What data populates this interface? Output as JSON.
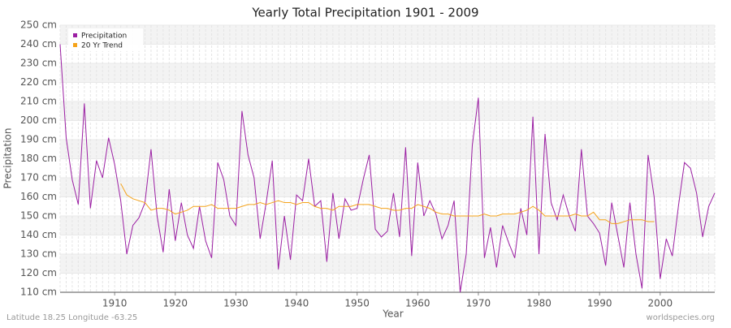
{
  "chart_data": {
    "type": "line",
    "title": "Yearly Total Precipitation 1901 - 2009",
    "x_label": "Year",
    "y_label": "Precipitation",
    "footer_left": "Latitude 18.25 Longitude -63.25",
    "footer_right": "worldspecies.org",
    "legend_position": "top-left",
    "grid": true,
    "x": [
      1901,
      1902,
      1903,
      1904,
      1905,
      1906,
      1907,
      1908,
      1909,
      1910,
      1911,
      1912,
      1913,
      1914,
      1915,
      1916,
      1917,
      1918,
      1919,
      1920,
      1921,
      1922,
      1923,
      1924,
      1925,
      1926,
      1927,
      1928,
      1929,
      1930,
      1931,
      1932,
      1933,
      1934,
      1935,
      1936,
      1937,
      1938,
      1939,
      1940,
      1941,
      1942,
      1943,
      1944,
      1945,
      1946,
      1947,
      1948,
      1949,
      1950,
      1951,
      1952,
      1953,
      1954,
      1955,
      1956,
      1957,
      1958,
      1959,
      1960,
      1961,
      1962,
      1963,
      1964,
      1965,
      1966,
      1967,
      1968,
      1969,
      1970,
      1971,
      1972,
      1973,
      1974,
      1975,
      1976,
      1977,
      1978,
      1979,
      1980,
      1981,
      1982,
      1983,
      1984,
      1985,
      1986,
      1987,
      1988,
      1989,
      1990,
      1991,
      1992,
      1993,
      1994,
      1995,
      1996,
      1997,
      1998,
      1999,
      2000,
      2001,
      2002,
      2003,
      2004,
      2005,
      2006,
      2007,
      2008,
      2009
    ],
    "series": [
      {
        "name": "Precipitation",
        "color": "#9b1fa3",
        "values": [
          240,
          191,
          169,
          156,
          209,
          154,
          179,
          170,
          191,
          177,
          158,
          130,
          145,
          149,
          157,
          185,
          150,
          131,
          164,
          137,
          157,
          140,
          133,
          155,
          137,
          128,
          178,
          169,
          150,
          145,
          205,
          182,
          170,
          138,
          157,
          179,
          122,
          150,
          127,
          161,
          158,
          180,
          155,
          158,
          126,
          162,
          138,
          159,
          153,
          154,
          169,
          182,
          143,
          139,
          142,
          162,
          139,
          186,
          129,
          178,
          150,
          158,
          151,
          138,
          145,
          158,
          110,
          130,
          187,
          212,
          128,
          144,
          123,
          145,
          136,
          128,
          154,
          140,
          202,
          130,
          193,
          157,
          148,
          161,
          150,
          142,
          185,
          150,
          146,
          141,
          124,
          157,
          140,
          123,
          157,
          130,
          112,
          182,
          160,
          117,
          138,
          129,
          155,
          178,
          175,
          162,
          139,
          155,
          162
        ]
      },
      {
        "name": "20 Yr Trend",
        "color": "#f5a31a",
        "values": [
          null,
          null,
          null,
          null,
          null,
          null,
          null,
          null,
          null,
          null,
          167,
          161,
          159,
          158,
          157,
          153,
          154,
          154,
          153,
          151,
          152,
          153,
          155,
          155,
          155,
          156,
          154,
          154,
          154,
          154,
          155,
          156,
          156,
          157,
          156,
          157,
          158,
          157,
          157,
          156,
          157,
          157,
          155,
          154,
          154,
          153,
          155,
          155,
          155,
          156,
          156,
          156,
          155,
          154,
          154,
          153,
          153,
          154,
          154,
          156,
          155,
          154,
          152,
          151,
          151,
          150,
          150,
          150,
          150,
          150,
          151,
          150,
          150,
          151,
          151,
          151,
          152,
          153,
          155,
          153,
          150,
          150,
          150,
          150,
          150,
          151,
          150,
          150,
          152,
          148,
          148,
          146,
          146,
          147,
          148,
          148,
          148,
          147,
          147,
          null,
          null,
          null,
          null,
          null,
          null,
          null,
          null,
          null,
          null
        ]
      }
    ],
    "xlim": [
      1901,
      2009
    ],
    "xticks": [
      1910,
      1920,
      1930,
      1940,
      1950,
      1960,
      1970,
      1980,
      1990,
      2000
    ],
    "ylim": [
      110,
      250
    ],
    "yticks": [
      {
        "value": 110,
        "label": "110 cm"
      },
      {
        "value": 120,
        "label": "120 cm"
      },
      {
        "value": 130,
        "label": "130 cm"
      },
      {
        "value": 140,
        "label": "140 cm"
      },
      {
        "value": 150,
        "label": "150 cm"
      },
      {
        "value": 160,
        "label": "160 cm"
      },
      {
        "value": 170,
        "label": "170 cm"
      },
      {
        "value": 180,
        "label": "180 cm"
      },
      {
        "value": 190,
        "label": "190 cm"
      },
      {
        "value": 200,
        "label": "200 cm"
      },
      {
        "value": 210,
        "label": "210 cm"
      },
      {
        "value": 220,
        "label": "220 cm"
      },
      {
        "value": 230,
        "label": "230 cm"
      },
      {
        "value": 240,
        "label": "240 cm"
      },
      {
        "value": 250,
        "label": "250 cm"
      }
    ]
  }
}
